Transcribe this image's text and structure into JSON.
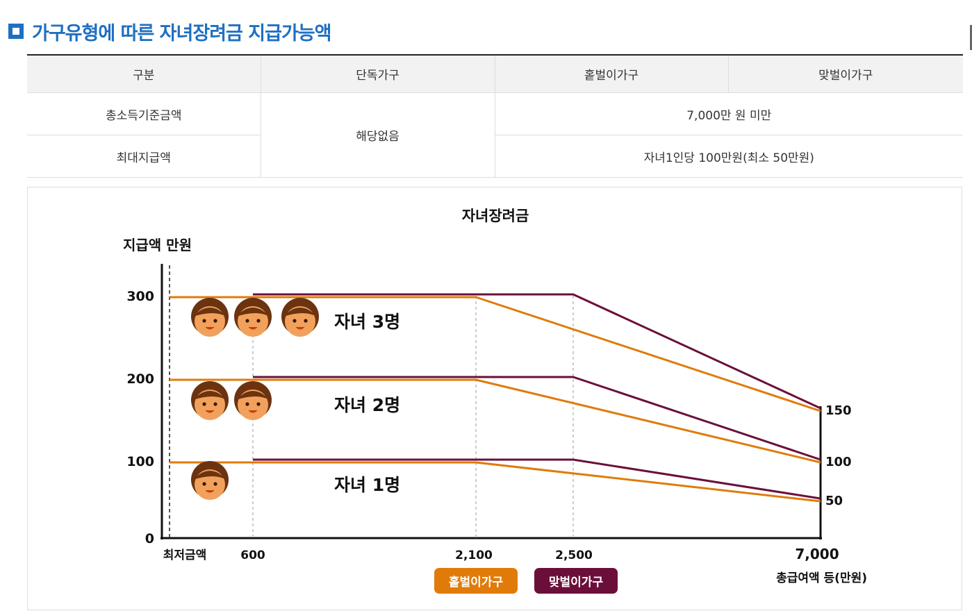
{
  "section": {
    "title": "가구유형에 따른 자녀장려금 지급가능액"
  },
  "table": {
    "headers": [
      "구분",
      "단독가구",
      "홑벌이가구",
      "맞벌이가구"
    ],
    "rows": [
      {
        "label": "총소득기준금액",
        "value": "7,000만 원 미만"
      },
      {
        "label": "최대지급액",
        "value": "자녀1인당 100만원(최소 50만원)"
      }
    ],
    "single_value": "해당없음"
  },
  "chart_data": {
    "type": "line",
    "title": "자녀장려금",
    "ylabel": "지급액 만원",
    "xlabel": "총급여액 등(만원)",
    "x_ticks": [
      "최저금액",
      "600",
      "2,100",
      "2,500",
      "7,000"
    ],
    "y_ticks": [
      "0",
      "100",
      "200",
      "300"
    ],
    "right_ticks": [
      "150",
      "100",
      "50"
    ],
    "colors": {
      "single": "#e07b0a",
      "dual": "#6b0f3a"
    },
    "series": [
      {
        "name": "홑벌이가구",
        "group": "자녀 3명",
        "x": [
          0,
          2100,
          7000
        ],
        "y": [
          300,
          300,
          150
        ]
      },
      {
        "name": "맞벌이가구",
        "group": "자녀 3명",
        "x": [
          600,
          2500,
          7000
        ],
        "y": [
          300,
          300,
          150
        ]
      },
      {
        "name": "홑벌이가구",
        "group": "자녀 2명",
        "x": [
          0,
          2100,
          7000
        ],
        "y": [
          200,
          200,
          100
        ]
      },
      {
        "name": "맞벌이가구",
        "group": "자녀 2명",
        "x": [
          600,
          2500,
          7000
        ],
        "y": [
          200,
          200,
          100
        ]
      },
      {
        "name": "홑벌이가구",
        "group": "자녀 1명",
        "x": [
          0,
          2100,
          7000
        ],
        "y": [
          100,
          100,
          50
        ]
      },
      {
        "name": "맞벌이가구",
        "group": "자녀 1명",
        "x": [
          600,
          2500,
          7000
        ],
        "y": [
          100,
          100,
          50
        ]
      }
    ],
    "groups": [
      {
        "label": "자녀 3명",
        "children": 3
      },
      {
        "label": "자녀 2명",
        "children": 2
      },
      {
        "label": "자녀 1명",
        "children": 1
      }
    ],
    "legend": [
      "홑벌이가구",
      "맞벌이가구"
    ]
  }
}
